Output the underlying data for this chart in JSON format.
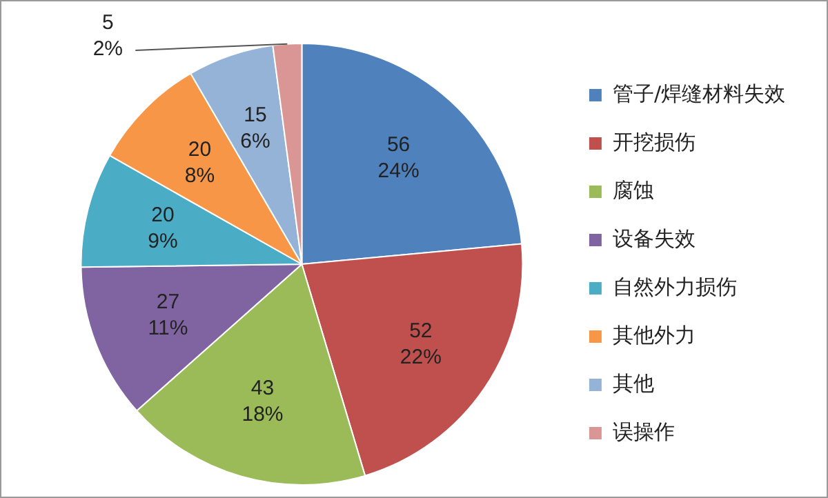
{
  "chart_data": {
    "type": "pie",
    "categories": [
      "管子/焊缝材料失效",
      "开挖损伤",
      "腐蚀",
      "设备失效",
      "自然外力损伤",
      "其他外力",
      "其他",
      "误操作"
    ],
    "values": [
      56,
      52,
      43,
      27,
      20,
      20,
      15,
      5
    ],
    "colors": [
      "#4f81bd",
      "#c0504d",
      "#9bbb59",
      "#8064a2",
      "#4bacc6",
      "#f79646",
      "#95b3d7",
      "#da9694"
    ],
    "value_labels": [
      "56\n24%",
      "52\n22%",
      "43\n18%",
      "27\n11%",
      "20\n9%",
      "20\n8%",
      "15\n6%",
      "5\n2%"
    ],
    "legend": "right"
  }
}
